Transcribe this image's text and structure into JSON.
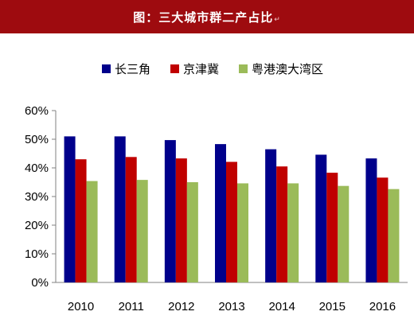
{
  "header": {
    "title": "图：三大城市群二产占比",
    "mark": "↵"
  },
  "chart_data": {
    "type": "bar",
    "title": "图：三大城市群二产占比",
    "categories": [
      "2010",
      "2011",
      "2012",
      "2013",
      "2014",
      "2015",
      "2016"
    ],
    "series": [
      {
        "name": "长三角",
        "color": "#00008b",
        "values": [
          51,
          51,
          49.7,
          48.3,
          46.5,
          44.6,
          43.3
        ]
      },
      {
        "name": "京津冀",
        "color": "#c00000",
        "values": [
          43,
          43.8,
          43.3,
          42.1,
          40.5,
          38.3,
          36.6
        ]
      },
      {
        "name": "粤港澳大湾区",
        "color": "#9bbb59",
        "values": [
          35.4,
          35.8,
          35,
          34.6,
          34.6,
          33.7,
          32.6
        ]
      }
    ],
    "yticks": [
      "0%",
      "10%",
      "20%",
      "30%",
      "40%",
      "50%",
      "60%"
    ],
    "ylim": [
      0,
      60
    ],
    "legend_position": "top",
    "grid": false
  }
}
